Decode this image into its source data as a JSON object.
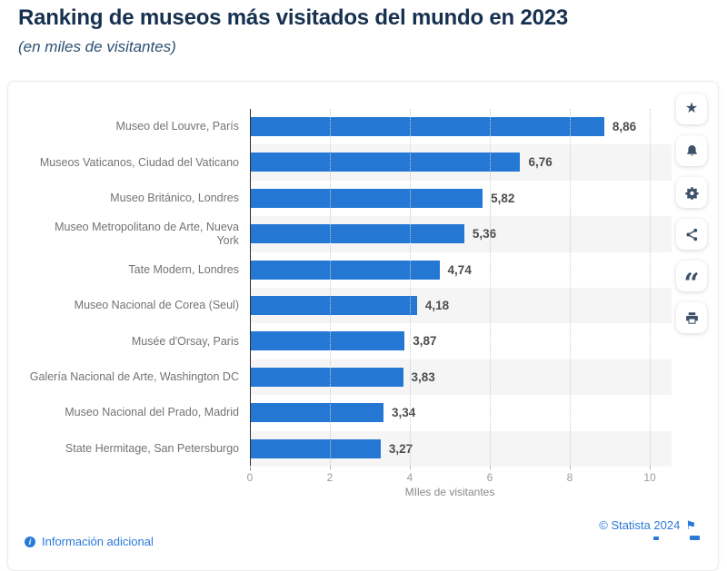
{
  "page": {
    "title": "Ranking de museos más visitados del mundo en 2023",
    "subtitle": "(en miles de visitantes)"
  },
  "chart_data": {
    "type": "bar",
    "orientation": "horizontal",
    "title": "Ranking de museos más visitados del mundo en 2023",
    "subtitle": "(en miles de visitantes)",
    "categories": [
      "Museo del Louvre, París",
      "Museos Vaticanos, Ciudad del Vaticano",
      "Museo Británico, Londres",
      "Museo Metropolitano de Arte, Nueva York",
      "Tate Modern, Londres",
      "Museo Nacional de Corea (Seul)",
      "Musée d'Orsay, Paris",
      "Galería Nacional de Arte, Washington DC",
      "Museo Nacional del Prado, Madrid",
      "State Hermitage, San Petersburgo"
    ],
    "values": [
      8.86,
      6.76,
      5.82,
      5.36,
      4.74,
      4.18,
      3.87,
      3.83,
      3.34,
      3.27
    ],
    "value_labels": [
      "8,86",
      "6,76",
      "5,82",
      "5,36",
      "4,74",
      "4,18",
      "3,87",
      "3,83",
      "3,34",
      "3,27"
    ],
    "xlabel": "MIles de visitantes",
    "xtick_labels": [
      "0",
      "2",
      "4",
      "6",
      "8",
      "10"
    ],
    "xtick_values": [
      0,
      2,
      4,
      6,
      8,
      10
    ],
    "xlim": [
      0,
      10
    ],
    "grid": "vertical-dotted",
    "legend": "none",
    "bar_color": "#2478d4",
    "row_alt_color": "#f5f5f6"
  },
  "toolbar": {
    "buttons": [
      {
        "icon": "favorite-star-icon"
      },
      {
        "icon": "notification-bell-icon"
      },
      {
        "icon": "settings-gear-icon"
      },
      {
        "icon": "share-icon"
      },
      {
        "icon": "cite-quote-icon"
      },
      {
        "icon": "print-icon"
      }
    ]
  },
  "footer": {
    "copyright": "© Statista 2024",
    "additional_info_label": "Información adicional"
  }
}
